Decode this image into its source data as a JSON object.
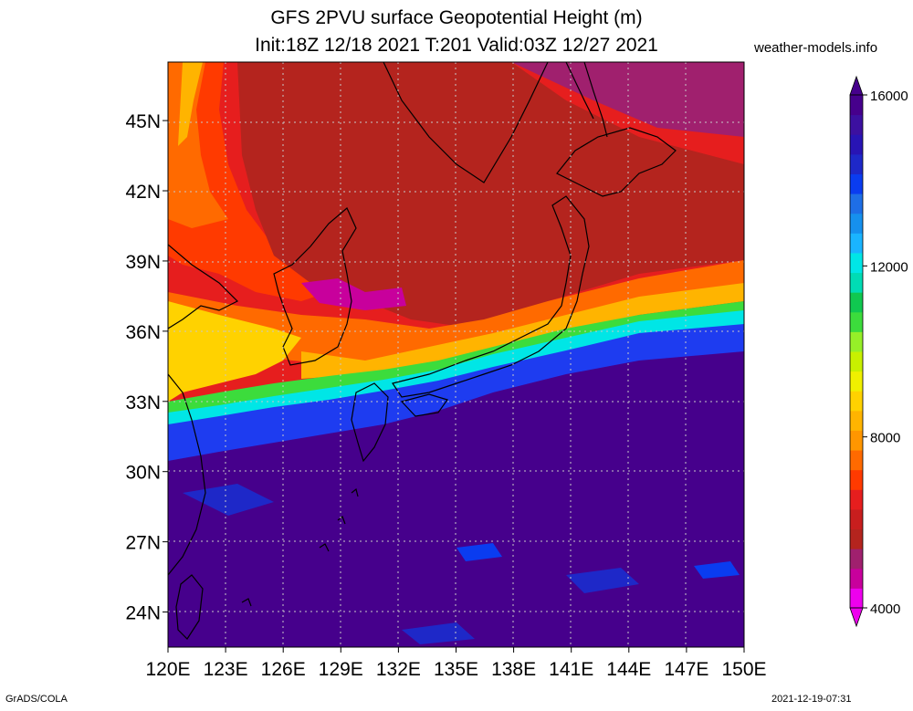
{
  "title_line1": "GFS 2PVU surface Geopotential Height (m)",
  "title_line2": "Init:18Z 12/18 2021 T:201 Valid:03Z 12/27 2021",
  "site": "weather-models.info",
  "footer_left": "GrADS/COLA",
  "footer_right": "2021-12-19-07:31",
  "map": {
    "lon_range": [
      120,
      150
    ],
    "lat_range": [
      22.5,
      47.5
    ],
    "lon_ticks": [
      "120E",
      "123E",
      "126E",
      "129E",
      "132E",
      "135E",
      "138E",
      "141E",
      "144E",
      "147E",
      "150E"
    ],
    "lat_ticks": [
      "24N",
      "27N",
      "30N",
      "33N",
      "36N",
      "39N",
      "42N",
      "45N"
    ],
    "grid": "dotted"
  },
  "colorbar": {
    "min": 4000,
    "max": 16000,
    "labels": [
      "4000",
      "8000",
      "12000",
      "16000"
    ],
    "colors": [
      "#ee00ee",
      "#c8009c",
      "#a0206e",
      "#b4241e",
      "#c81e1e",
      "#e61e1e",
      "#ff3a00",
      "#ff6a00",
      "#ff9600",
      "#ffb400",
      "#ffd200",
      "#f0f000",
      "#c8f000",
      "#96ef28",
      "#3cdc3c",
      "#10c850",
      "#00dcb4",
      "#00e6e6",
      "#1ab4ff",
      "#1690ee",
      "#1e6ee6",
      "#0a3cf0",
      "#1e28c8",
      "#2814b4",
      "#3c10a0",
      "#46008c"
    ]
  },
  "colors": {
    "low": "#c8009c",
    "ridge": "#b4241e",
    "mid": "#e61e1e",
    "warm": "#ff6a00",
    "yellow": "#ffe000",
    "green": "#3cdc3c",
    "cyan": "#00e6e6",
    "blue": "#1e3cf0",
    "deep": "#46008c"
  }
}
